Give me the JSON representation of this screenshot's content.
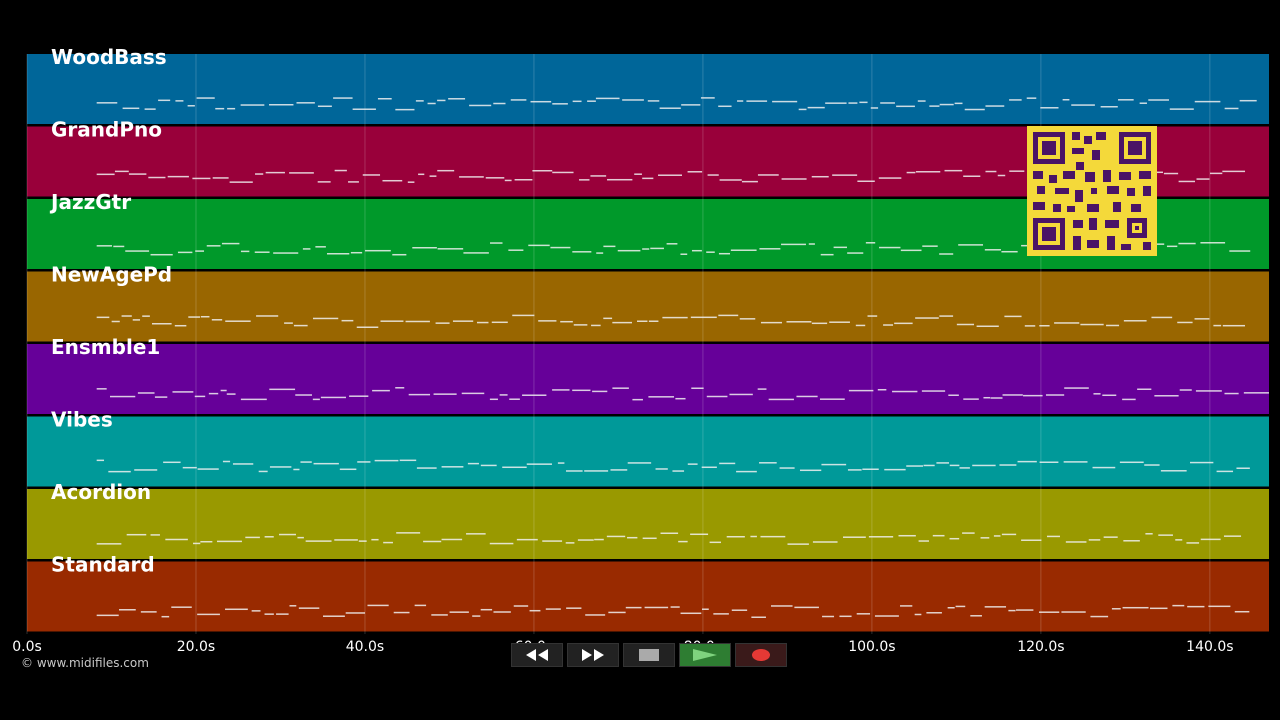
{
  "timeline": {
    "tick_labels": [
      "0.0s",
      "20.0s",
      "40.0s",
      "60.0s",
      "80.0s",
      "100.0s",
      "120.0s",
      "140.0s"
    ],
    "tick_values": [
      0,
      20,
      40,
      60,
      80,
      100,
      120,
      140
    ],
    "max_seconds": 147
  },
  "tracks": [
    {
      "name": "WoodBass",
      "color": "#006699"
    },
    {
      "name": "GrandPno",
      "color": "#99003a"
    },
    {
      "name": "JazzGtr",
      "color": "#00992a"
    },
    {
      "name": "NewAgePd",
      "color": "#996600"
    },
    {
      "name": "Ensmble1",
      "color": "#660099"
    },
    {
      "name": "Vibes",
      "color": "#009999"
    },
    {
      "name": "Acordion",
      "color": "#999900"
    },
    {
      "name": "Standard",
      "color": "#992a00"
    }
  ],
  "footer": {
    "copyright": "© www.midifiles.com"
  },
  "transport": {
    "buttons": [
      {
        "name": "rewind-button",
        "icon": "rewind-icon"
      },
      {
        "name": "fast-forward-button",
        "icon": "fast-forward-icon"
      },
      {
        "name": "stop-button",
        "icon": "stop-icon"
      },
      {
        "name": "play-button",
        "icon": "play-icon"
      },
      {
        "name": "record-button",
        "icon": "record-icon"
      }
    ]
  }
}
